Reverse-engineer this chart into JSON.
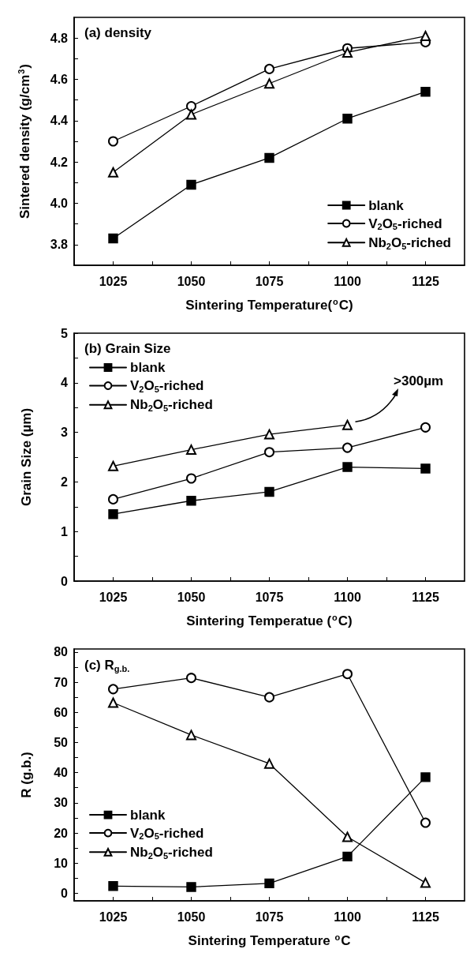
{
  "chart_data": [
    {
      "type": "line",
      "title": "(a) density",
      "xlabel": "Sintering Temperature($^{o}$C)",
      "ylabel": "Sintered density (g/cm$^{3}$)",
      "x": [
        1025,
        1050,
        1075,
        1100,
        1125
      ],
      "series": [
        {
          "name": "blank",
          "color": "#000000",
          "marker": "square",
          "values": [
            3.83,
            4.09,
            4.22,
            4.41,
            4.54
          ]
        },
        {
          "name": "V$_{2}$O$_{5}$-riched",
          "color": "#000000",
          "marker": "circle",
          "values": [
            4.3,
            4.47,
            4.65,
            4.75,
            4.78
          ]
        },
        {
          "name": "Nb$_{2}$O$_{5}$-riched",
          "color": "#000000",
          "marker": "triangle",
          "values": [
            4.15,
            4.43,
            4.58,
            4.73,
            4.81
          ]
        }
      ],
      "xlim": [
        1012.5,
        1137.5
      ],
      "xticks": [
        1025,
        {
          "value": 1037.5,
          "label": null
        },
        1050,
        {
          "value": 1062.5,
          "label": null
        },
        1075,
        {
          "value": 1087.5,
          "label": null
        },
        1100,
        {
          "value": 1112.5,
          "label": null
        },
        1125
      ],
      "ylim": [
        3.7,
        4.9
      ],
      "yticks": [
        3.8,
        {
          "value": 3.9,
          "label": null
        },
        {
          "value": 4,
          "label": "4.0"
        },
        {
          "value": 4.1,
          "label": null
        },
        4.2,
        {
          "value": 4.3,
          "label": null
        },
        4.4,
        {
          "value": 4.5,
          "label": null
        },
        4.6,
        {
          "value": 4.7,
          "label": null
        },
        4.8
      ],
      "legend": "bottom right"
    },
    {
      "type": "line",
      "title": "(b) Grain Size",
      "xlabel": "Sintering Temperatue ($^{o}$C)",
      "ylabel": "Grain Size (µm)",
      "x": [
        1025,
        1050,
        1075,
        1100,
        1125
      ],
      "series": [
        {
          "name": "blank",
          "color": "#000000",
          "marker": "square",
          "values": [
            1.35,
            1.62,
            1.8,
            2.3,
            2.27
          ]
        },
        {
          "name": "V$_{2}$O$_{5}$-riched",
          "color": "#000000",
          "marker": "circle",
          "values": [
            1.65,
            2.07,
            2.6,
            2.69,
            3.1
          ]
        },
        {
          "name": "Nb$_{2}$O$_{5}$-riched",
          "color": "#000000",
          "marker": "triangle",
          "values": [
            2.32,
            2.65,
            2.96,
            3.15,
            null
          ]
        }
      ],
      "annotations": [
        ">300µm"
      ],
      "xlim": [
        1012.5,
        1137.5
      ],
      "xticks": [
        1025,
        {
          "value": 1037.5,
          "label": null
        },
        1050,
        {
          "value": 1062.5,
          "label": null
        },
        1075,
        {
          "value": 1087.5,
          "label": null
        },
        1100,
        {
          "value": 1112.5,
          "label": null
        },
        1125
      ],
      "ylim": [
        0,
        5
      ],
      "yticks": [
        0,
        {
          "value": 0.5,
          "label": null
        },
        1,
        {
          "value": 1.5,
          "label": null
        },
        2,
        {
          "value": 2.5,
          "label": null
        },
        3,
        {
          "value": 3.5,
          "label": null
        },
        4,
        {
          "value": 4.5,
          "label": null
        },
        5
      ],
      "legend": "top left"
    },
    {
      "type": "line",
      "title": "(c) R$_{g.b.}$",
      "xlabel": "Sintering Temperature $^{o}$C",
      "ylabel": "R (g.b.)",
      "x": [
        1025,
        1050,
        1075,
        1100,
        1125
      ],
      "series": [
        {
          "name": "blank",
          "color": "#000000",
          "marker": "square",
          "values": [
            2.4,
            2.1,
            3.3,
            12.2,
            38.5
          ]
        },
        {
          "name": "V$_{2}$O$_{5}$-riched",
          "color": "#000000",
          "marker": "circle",
          "values": [
            67.7,
            71.4,
            65.0,
            72.7,
            23.4
          ]
        },
        {
          "name": "Nb$_{2}$O$_{5}$-riched",
          "color": "#000000",
          "marker": "triangle",
          "values": [
            63.2,
            52.5,
            43.0,
            18.7,
            3.5
          ]
        }
      ],
      "xlim": [
        1012.5,
        1137.5
      ],
      "xticks": [
        1025,
        {
          "value": 1037.5,
          "label": null
        },
        1050,
        {
          "value": 1062.5,
          "label": null
        },
        1075,
        {
          "value": 1087.5,
          "label": null
        },
        1100,
        {
          "value": 1112.5,
          "label": null
        },
        1125
      ],
      "ylim": [
        -2.5,
        81
      ],
      "yticks": [
        0,
        {
          "value": 5,
          "label": null
        },
        10,
        {
          "value": 15,
          "label": null
        },
        20,
        {
          "value": 25,
          "label": null
        },
        30,
        {
          "value": 35,
          "label": null
        },
        40,
        {
          "value": 45,
          "label": null
        },
        50,
        {
          "value": 55,
          "label": null
        },
        60,
        {
          "value": 65,
          "label": null
        },
        70,
        {
          "value": 75,
          "label": null
        },
        80
      ],
      "legend": "left"
    }
  ]
}
